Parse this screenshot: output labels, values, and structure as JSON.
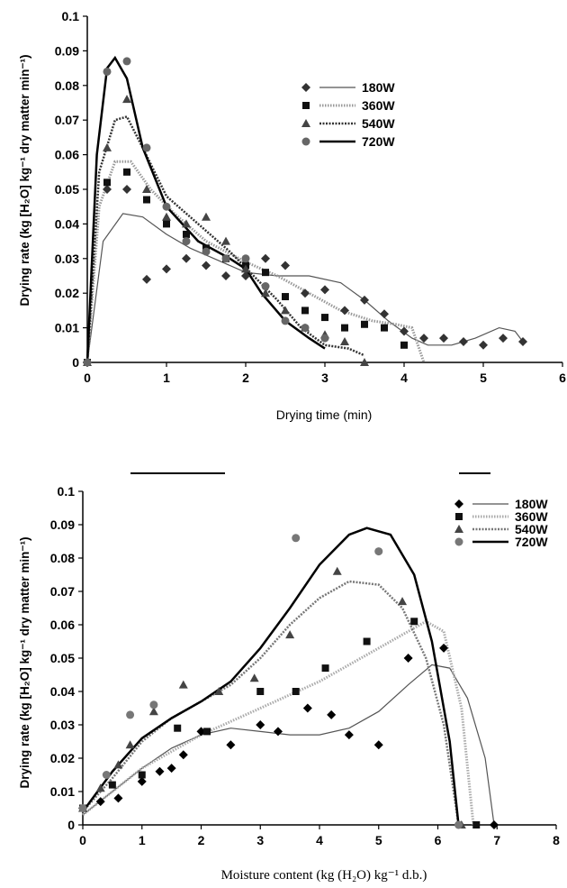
{
  "chart_data": [
    {
      "type": "scatter",
      "xlabel": "Drying time (min)",
      "ylabel": "Drying rate (kg [H₂O] kg⁻¹ dry matter min⁻¹)",
      "xlim": [
        0,
        6
      ],
      "ylim": [
        0,
        0.1
      ],
      "x_ticks": [
        "0",
        "1",
        "2",
        "3",
        "4",
        "5",
        "6"
      ],
      "y_ticks": [
        "0",
        "0.01",
        "0.02",
        "0.03",
        "0.04",
        "0.05",
        "0.06",
        "0.07",
        "0.08",
        "0.09",
        "0.1"
      ],
      "legend_position": "top-right",
      "series": [
        {
          "name": "180W",
          "marker": "diamond",
          "color": "#333333",
          "line_style": "solid-thin",
          "line_color": "#555555",
          "points": [
            [
              0,
              0
            ],
            [
              0.25,
              0.05
            ],
            [
              0.5,
              0.05
            ],
            [
              0.75,
              0.024
            ],
            [
              1.0,
              0.027
            ],
            [
              1.25,
              0.03
            ],
            [
              1.5,
              0.028
            ],
            [
              1.75,
              0.025
            ],
            [
              2.0,
              0.025
            ],
            [
              2.25,
              0.03
            ],
            [
              2.5,
              0.028
            ],
            [
              2.75,
              0.02
            ],
            [
              3.0,
              0.021
            ],
            [
              3.25,
              0.015
            ],
            [
              3.5,
              0.018
            ],
            [
              3.75,
              0.014
            ],
            [
              4.0,
              0.009
            ],
            [
              4.25,
              0.007
            ],
            [
              4.5,
              0.007
            ],
            [
              4.75,
              0.006
            ],
            [
              5.0,
              0.005
            ],
            [
              5.25,
              0.007
            ],
            [
              5.5,
              0.006
            ]
          ],
          "fit": [
            [
              0,
              0
            ],
            [
              0.2,
              0.035
            ],
            [
              0.45,
              0.043
            ],
            [
              0.7,
              0.042
            ],
            [
              1.0,
              0.037
            ],
            [
              1.3,
              0.033
            ],
            [
              1.6,
              0.03
            ],
            [
              2.0,
              0.026
            ],
            [
              2.4,
              0.025
            ],
            [
              2.8,
              0.025
            ],
            [
              3.2,
              0.023
            ],
            [
              3.5,
              0.018
            ],
            [
              3.8,
              0.012
            ],
            [
              4.1,
              0.007
            ],
            [
              4.3,
              0.005
            ],
            [
              4.6,
              0.005
            ],
            [
              4.9,
              0.007
            ],
            [
              5.2,
              0.01
            ],
            [
              5.4,
              0.009
            ],
            [
              5.5,
              0.006
            ]
          ]
        },
        {
          "name": "360W",
          "marker": "square",
          "color": "#111111",
          "line_style": "dotted",
          "line_color": "#999999",
          "points": [
            [
              0,
              0
            ],
            [
              0.25,
              0.052
            ],
            [
              0.5,
              0.055
            ],
            [
              0.75,
              0.047
            ],
            [
              1.0,
              0.04
            ],
            [
              1.25,
              0.037
            ],
            [
              1.5,
              0.033
            ],
            [
              1.75,
              0.03
            ],
            [
              2.0,
              0.028
            ],
            [
              2.25,
              0.026
            ],
            [
              2.5,
              0.019
            ],
            [
              2.75,
              0.015
            ],
            [
              3.0,
              0.013
            ],
            [
              3.25,
              0.01
            ],
            [
              3.5,
              0.011
            ],
            [
              3.75,
              0.01
            ],
            [
              4.0,
              0.005
            ]
          ],
          "fit": [
            [
              0,
              0
            ],
            [
              0.15,
              0.045
            ],
            [
              0.35,
              0.058
            ],
            [
              0.55,
              0.058
            ],
            [
              0.8,
              0.05
            ],
            [
              1.1,
              0.043
            ],
            [
              1.5,
              0.035
            ],
            [
              2.0,
              0.029
            ],
            [
              2.4,
              0.025
            ],
            [
              2.8,
              0.02
            ],
            [
              3.2,
              0.015
            ],
            [
              3.6,
              0.012
            ],
            [
              3.9,
              0.011
            ],
            [
              4.1,
              0.01
            ],
            [
              4.25,
              0.0
            ]
          ]
        },
        {
          "name": "540W",
          "marker": "triangle",
          "color": "#444444",
          "line_style": "dashed",
          "line_color": "#333333",
          "points": [
            [
              0,
              0
            ],
            [
              0.25,
              0.062
            ],
            [
              0.5,
              0.076
            ],
            [
              0.75,
              0.05
            ],
            [
              1.0,
              0.042
            ],
            [
              1.25,
              0.04
            ],
            [
              1.5,
              0.042
            ],
            [
              1.75,
              0.035
            ],
            [
              2.0,
              0.027
            ],
            [
              2.25,
              0.02
            ],
            [
              2.5,
              0.015
            ],
            [
              2.75,
              0.01
            ],
            [
              3.0,
              0.008
            ],
            [
              3.25,
              0.006
            ],
            [
              3.5,
              0.0
            ]
          ],
          "fit": [
            [
              0,
              0
            ],
            [
              0.15,
              0.055
            ],
            [
              0.35,
              0.07
            ],
            [
              0.5,
              0.071
            ],
            [
              0.7,
              0.062
            ],
            [
              1.0,
              0.048
            ],
            [
              1.4,
              0.04
            ],
            [
              1.8,
              0.032
            ],
            [
              2.1,
              0.025
            ],
            [
              2.4,
              0.018
            ],
            [
              2.7,
              0.01
            ],
            [
              3.0,
              0.005
            ],
            [
              3.3,
              0.004
            ],
            [
              3.5,
              0.002
            ]
          ]
        },
        {
          "name": "720W",
          "marker": "circle",
          "color": "#666666",
          "line_style": "solid-thick",
          "line_color": "#000000",
          "points": [
            [
              0,
              0
            ],
            [
              0.25,
              0.084
            ],
            [
              0.5,
              0.087
            ],
            [
              0.75,
              0.062
            ],
            [
              1.0,
              0.045
            ],
            [
              1.25,
              0.035
            ],
            [
              1.5,
              0.032
            ],
            [
              1.75,
              0.03
            ],
            [
              2.0,
              0.03
            ],
            [
              2.25,
              0.022
            ],
            [
              2.5,
              0.012
            ],
            [
              2.75,
              0.01
            ],
            [
              3.0,
              0.007
            ]
          ],
          "fit": [
            [
              0,
              0
            ],
            [
              0.12,
              0.06
            ],
            [
              0.25,
              0.085
            ],
            [
              0.35,
              0.088
            ],
            [
              0.5,
              0.082
            ],
            [
              0.7,
              0.062
            ],
            [
              1.0,
              0.045
            ],
            [
              1.4,
              0.035
            ],
            [
              1.8,
              0.03
            ],
            [
              2.0,
              0.027
            ],
            [
              2.2,
              0.02
            ],
            [
              2.5,
              0.012
            ],
            [
              2.8,
              0.007
            ],
            [
              3.0,
              0.004
            ]
          ]
        }
      ]
    },
    {
      "type": "scatter",
      "xlabel": "Moisture content (kg (H₂O) kg⁻¹ d.b.)",
      "ylabel": "Drying rate (kg [H₂O] kg⁻¹ dry matter min⁻¹)",
      "xlim": [
        0,
        8
      ],
      "ylim": [
        0,
        0.1
      ],
      "x_ticks": [
        "0",
        "1",
        "2",
        "3",
        "4",
        "5",
        "6",
        "7",
        "8"
      ],
      "y_ticks": [
        "0",
        "0.01",
        "0.02",
        "0.03",
        "0.04",
        "0.05",
        "0.06",
        "0.07",
        "0.08",
        "0.09",
        "0.1"
      ],
      "legend_position": "top-right",
      "series": [
        {
          "name": "180W",
          "marker": "diamond",
          "color": "#000000",
          "line_style": "solid-thin",
          "line_color": "#555555",
          "points": [
            [
              0,
              0.005
            ],
            [
              0.3,
              0.007
            ],
            [
              0.6,
              0.008
            ],
            [
              1.0,
              0.013
            ],
            [
              1.3,
              0.016
            ],
            [
              1.5,
              0.017
            ],
            [
              1.7,
              0.021
            ],
            [
              2.0,
              0.028
            ],
            [
              2.5,
              0.024
            ],
            [
              3.0,
              0.03
            ],
            [
              3.3,
              0.028
            ],
            [
              3.8,
              0.035
            ],
            [
              4.2,
              0.033
            ],
            [
              4.5,
              0.027
            ],
            [
              5.0,
              0.024
            ],
            [
              5.5,
              0.05
            ],
            [
              6.1,
              0.053
            ],
            [
              6.95,
              0.0
            ]
          ],
          "fit": [
            [
              0,
              0.003
            ],
            [
              0.5,
              0.01
            ],
            [
              1.0,
              0.017
            ],
            [
              1.5,
              0.023
            ],
            [
              2.0,
              0.027
            ],
            [
              2.5,
              0.029
            ],
            [
              3.0,
              0.028
            ],
            [
              3.5,
              0.027
            ],
            [
              4.0,
              0.027
            ],
            [
              4.5,
              0.029
            ],
            [
              5.0,
              0.034
            ],
            [
              5.5,
              0.042
            ],
            [
              5.9,
              0.048
            ],
            [
              6.2,
              0.047
            ],
            [
              6.5,
              0.038
            ],
            [
              6.8,
              0.02
            ],
            [
              6.95,
              0.0
            ]
          ]
        },
        {
          "name": "360W",
          "marker": "square",
          "color": "#111111",
          "line_style": "dotted",
          "line_color": "#aaaaaa",
          "points": [
            [
              0,
              0.005
            ],
            [
              0.5,
              0.012
            ],
            [
              1.0,
              0.015
            ],
            [
              1.6,
              0.029
            ],
            [
              2.1,
              0.028
            ],
            [
              3.0,
              0.04
            ],
            [
              3.6,
              0.04
            ],
            [
              4.1,
              0.047
            ],
            [
              4.8,
              0.055
            ],
            [
              5.6,
              0.061
            ],
            [
              6.65,
              0.0
            ]
          ],
          "fit": [
            [
              0,
              0.003
            ],
            [
              0.5,
              0.01
            ],
            [
              1.0,
              0.017
            ],
            [
              1.5,
              0.022
            ],
            [
              2.0,
              0.027
            ],
            [
              2.5,
              0.031
            ],
            [
              3.0,
              0.035
            ],
            [
              3.5,
              0.039
            ],
            [
              4.0,
              0.043
            ],
            [
              4.5,
              0.048
            ],
            [
              5.0,
              0.053
            ],
            [
              5.5,
              0.058
            ],
            [
              5.8,
              0.061
            ],
            [
              6.1,
              0.058
            ],
            [
              6.4,
              0.035
            ],
            [
              6.6,
              0.0
            ]
          ]
        },
        {
          "name": "540W",
          "marker": "triangle",
          "color": "#444444",
          "line_style": "dashed",
          "line_color": "#777777",
          "points": [
            [
              0,
              0.005
            ],
            [
              0.3,
              0.011
            ],
            [
              0.6,
              0.018
            ],
            [
              0.8,
              0.024
            ],
            [
              1.2,
              0.034
            ],
            [
              1.7,
              0.042
            ],
            [
              2.3,
              0.04
            ],
            [
              2.9,
              0.044
            ],
            [
              3.5,
              0.057
            ],
            [
              4.3,
              0.076
            ],
            [
              5.4,
              0.067
            ],
            [
              6.4,
              0.0
            ]
          ],
          "fit": [
            [
              0,
              0.004
            ],
            [
              0.5,
              0.014
            ],
            [
              1.0,
              0.025
            ],
            [
              1.5,
              0.032
            ],
            [
              2.0,
              0.037
            ],
            [
              2.5,
              0.042
            ],
            [
              3.0,
              0.05
            ],
            [
              3.5,
              0.06
            ],
            [
              4.0,
              0.068
            ],
            [
              4.5,
              0.073
            ],
            [
              5.0,
              0.072
            ],
            [
              5.4,
              0.065
            ],
            [
              5.8,
              0.05
            ],
            [
              6.1,
              0.03
            ],
            [
              6.35,
              0.0
            ]
          ]
        },
        {
          "name": "720W",
          "marker": "circle",
          "color": "#777777",
          "line_style": "solid-thick",
          "line_color": "#000000",
          "points": [
            [
              0,
              0.005
            ],
            [
              0.4,
              0.015
            ],
            [
              0.8,
              0.033
            ],
            [
              1.2,
              0.036
            ],
            [
              3.6,
              0.086
            ],
            [
              5.0,
              0.082
            ],
            [
              6.35,
              0.0
            ]
          ],
          "fit": [
            [
              0,
              0.004
            ],
            [
              0.5,
              0.016
            ],
            [
              1.0,
              0.026
            ],
            [
              1.5,
              0.032
            ],
            [
              2.0,
              0.037
            ],
            [
              2.5,
              0.043
            ],
            [
              3.0,
              0.053
            ],
            [
              3.5,
              0.065
            ],
            [
              4.0,
              0.078
            ],
            [
              4.5,
              0.087
            ],
            [
              4.8,
              0.089
            ],
            [
              5.2,
              0.087
            ],
            [
              5.6,
              0.075
            ],
            [
              5.9,
              0.055
            ],
            [
              6.2,
              0.025
            ],
            [
              6.35,
              0.0
            ]
          ]
        }
      ]
    }
  ]
}
